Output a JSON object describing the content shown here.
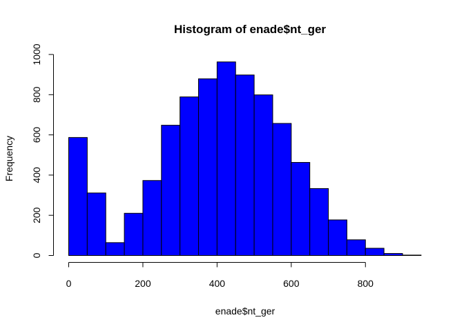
{
  "chart_data": {
    "type": "bar",
    "title": "Histogram of enade$nt_ger",
    "xlabel": "enade$nt_ger",
    "ylabel": "Frequency",
    "bar_color": "#0000ff",
    "bin_width": 50,
    "bins": [
      {
        "start": 0,
        "end": 50,
        "count": 587
      },
      {
        "start": 50,
        "end": 100,
        "count": 311
      },
      {
        "start": 100,
        "end": 150,
        "count": 64
      },
      {
        "start": 150,
        "end": 200,
        "count": 210
      },
      {
        "start": 200,
        "end": 250,
        "count": 373
      },
      {
        "start": 250,
        "end": 300,
        "count": 648
      },
      {
        "start": 300,
        "end": 350,
        "count": 789
      },
      {
        "start": 350,
        "end": 400,
        "count": 879
      },
      {
        "start": 400,
        "end": 450,
        "count": 963
      },
      {
        "start": 450,
        "end": 500,
        "count": 898
      },
      {
        "start": 500,
        "end": 550,
        "count": 799
      },
      {
        "start": 550,
        "end": 600,
        "count": 657
      },
      {
        "start": 600,
        "end": 650,
        "count": 463
      },
      {
        "start": 650,
        "end": 700,
        "count": 333
      },
      {
        "start": 700,
        "end": 750,
        "count": 177
      },
      {
        "start": 750,
        "end": 800,
        "count": 78
      },
      {
        "start": 800,
        "end": 850,
        "count": 36
      },
      {
        "start": 850,
        "end": 900,
        "count": 10
      },
      {
        "start": 900,
        "end": 950,
        "count": 2
      }
    ],
    "xlim": [
      0,
      950
    ],
    "ylim": [
      0,
      1000
    ],
    "x_ticks": [
      "0",
      "200",
      "400",
      "600",
      "800"
    ],
    "y_ticks": [
      "0",
      "200",
      "400",
      "600",
      "800",
      "1000"
    ],
    "grid": false,
    "legend": "none"
  }
}
